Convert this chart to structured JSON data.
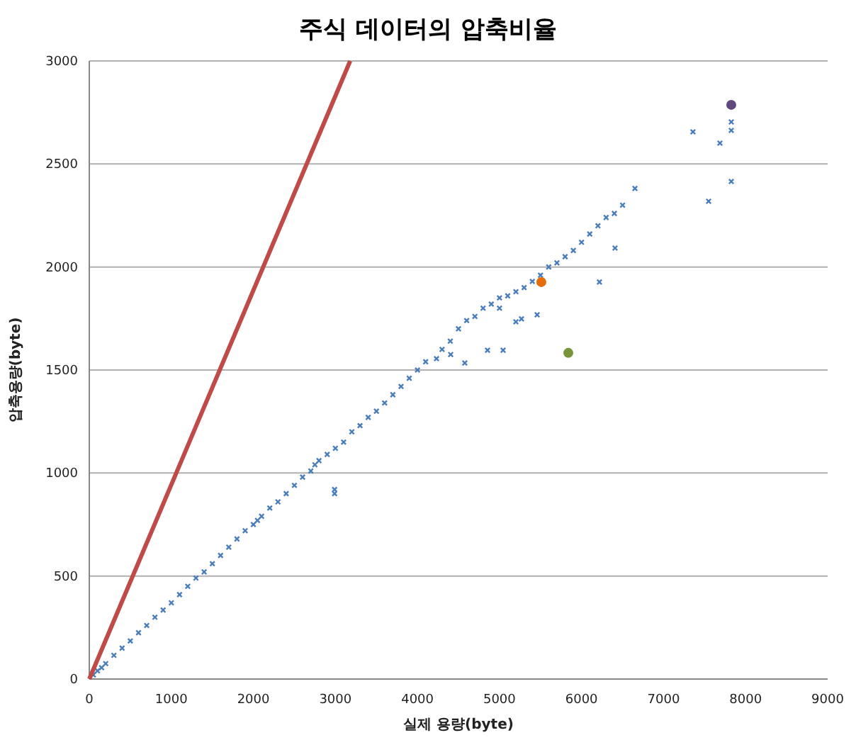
{
  "chart_data": {
    "type": "scatter",
    "title": "주식 데이터의 압축비율",
    "xlabel": "실제 용량(byte)",
    "ylabel": "압축용량(byte)",
    "xlim": [
      0,
      9000
    ],
    "ylim": [
      0,
      3000
    ],
    "xticks": [
      0,
      1000,
      2000,
      3000,
      4000,
      5000,
      6000,
      7000,
      8000,
      9000
    ],
    "yticks": [
      0,
      500,
      1000,
      1500,
      2000,
      2500,
      3000
    ],
    "grid": "y",
    "series": [
      {
        "color": "#4a7ebb",
        "marker": "cross",
        "x": [
          50,
          100,
          150,
          200,
          300,
          400,
          500,
          600,
          700,
          800,
          900,
          1000,
          1100,
          1200,
          1300,
          1400,
          1500,
          1600,
          1700,
          1800,
          1900,
          2000,
          2050,
          2100,
          2200,
          2300,
          2400,
          2500,
          2600,
          2700,
          2750,
          2800,
          2900,
          3000,
          2990,
          2990,
          3100,
          3200,
          3300,
          3400,
          3500,
          3600,
          3700,
          3800,
          3900,
          4000,
          4100,
          4232,
          4300,
          4405,
          4400,
          4500,
          4577,
          4600,
          4700,
          4800,
          4854,
          4900,
          5000,
          5044,
          5000,
          5100,
          5200,
          5200,
          5268,
          5300,
          5400,
          5459,
          5500,
          5600,
          5700,
          5800,
          5900,
          6000,
          6100,
          6218,
          6200,
          6300,
          6408,
          6400,
          6500,
          6651,
          7358,
          7549,
          7687,
          7825,
          7825,
          7825
        ],
        "values": [
          20,
          40,
          55,
          75,
          115,
          150,
          185,
          225,
          260,
          300,
          335,
          370,
          410,
          450,
          490,
          520,
          560,
          600,
          640,
          680,
          720,
          750,
          770,
          790,
          830,
          860,
          900,
          940,
          980,
          1010,
          1040,
          1060,
          1090,
          1120,
          920,
          900,
          1150,
          1200,
          1230,
          1270,
          1300,
          1340,
          1380,
          1420,
          1460,
          1500,
          1540,
          1555,
          1600,
          1575,
          1640,
          1700,
          1534,
          1740,
          1760,
          1800,
          1596,
          1820,
          1850,
          1596,
          1800,
          1860,
          1880,
          1734,
          1748,
          1900,
          1930,
          1768,
          1960,
          2000,
          2020,
          2050,
          2080,
          2120,
          2160,
          1927,
          2200,
          2240,
          2092,
          2260,
          2300,
          2381,
          2656,
          2319,
          2601,
          2415,
          2663,
          2704
        ]
      },
      {
        "type": "line",
        "color": "#be4b48",
        "marker": "none",
        "line_style": "solid",
        "x": [
          0,
          3180
        ],
        "values": [
          0,
          3000
        ]
      },
      {
        "type": "scatter",
        "marker": "circle",
        "colors": [
          "#604a7b",
          "#e46c0a",
          "#77933c"
        ],
        "x": [
          7825,
          5510,
          5839
        ],
        "values": [
          2787,
          1927,
          1583
        ]
      }
    ]
  }
}
